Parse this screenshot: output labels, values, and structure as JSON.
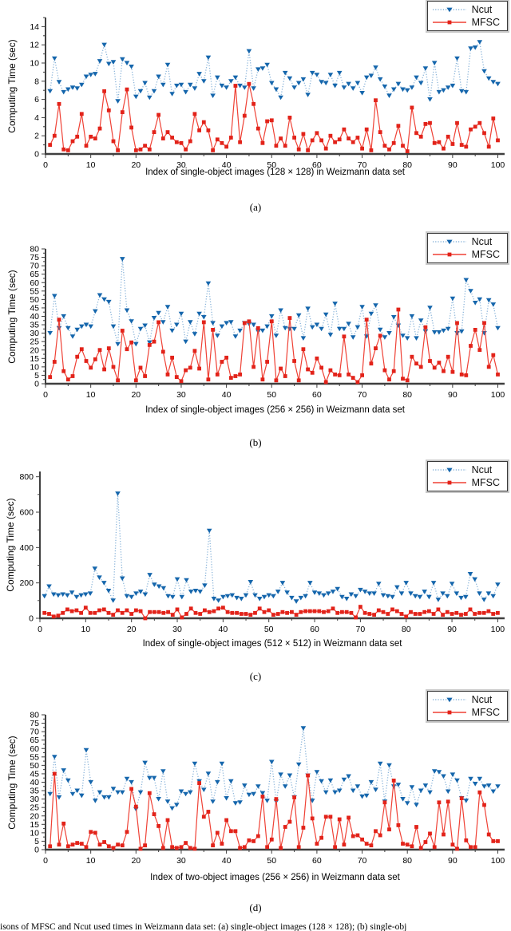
{
  "caption_fragment": "isons of MFSC and Ncut used times in Weizmann data set: (a) single-object images (128 × 128); (b) single-obj",
  "colors": {
    "ncut_marker": "#1566ac",
    "ncut_line": "#88b3d9",
    "mfsc_marker": "#e2231a",
    "mfsc_line": "#ef4135",
    "axis": "#3f3f3f",
    "text": "#000000"
  },
  "chart_data": [
    {
      "type": "line",
      "sub_label": "(a)",
      "ylabel": "Computing  Time (sec)",
      "xlabel": "Index of single-object images (128 × 128) in Weizmann data set",
      "x_start": 1,
      "x_end": 100,
      "xticks": [
        0,
        10,
        20,
        30,
        40,
        50,
        60,
        70,
        80,
        90,
        100
      ],
      "ylim": [
        0,
        15
      ],
      "ytick_step": 2,
      "ytick_max": 14,
      "legend_position": "top-right",
      "grid": false,
      "series": [
        {
          "name": "Ncut",
          "style": "dotted-triangle",
          "values": [
            6.9,
            10.5,
            7.9,
            6.8,
            7.1,
            7.3,
            7.2,
            7.6,
            8.5,
            8.7,
            8.8,
            10.2,
            12.0,
            9.9,
            10.1,
            5.8,
            10.4,
            10.0,
            9.6,
            6.3,
            6.9,
            7.8,
            6.2,
            6.9,
            8.5,
            7.6,
            9.8,
            6.6,
            7.5,
            7.6,
            6.8,
            7.6,
            7.2,
            8.8,
            8.0,
            10.6,
            6.4,
            8.4,
            7.5,
            7.3,
            8.0,
            8.4,
            7.5,
            7.3,
            11.3,
            7.2,
            9.3,
            9.4,
            9.8,
            7.8,
            7.1,
            6.2,
            8.9,
            8.3,
            7.3,
            7.8,
            8.2,
            6.5,
            8.9,
            8.7,
            7.9,
            7.8,
            8.7,
            7.5,
            8.9,
            7.3,
            7.7,
            7.2,
            7.8,
            6.7,
            8.4,
            8.6,
            9.5,
            8.2,
            7.4,
            6.4,
            7.1,
            7.7,
            7.1,
            7.0,
            7.3,
            8.4,
            7.8,
            9.4,
            6.0,
            10.0,
            6.8,
            7.0,
            7.3,
            7.5,
            10.5,
            6.9,
            6.8,
            11.6,
            11.7,
            12.3,
            9.1,
            8.3,
            7.9,
            7.7
          ]
        },
        {
          "name": "MFSC",
          "style": "solid-square",
          "values": [
            1.0,
            2.0,
            5.5,
            0.5,
            0.4,
            1.4,
            1.9,
            4.4,
            0.9,
            1.9,
            1.7,
            2.8,
            6.9,
            4.8,
            1.4,
            0.4,
            4.6,
            7.1,
            2.9,
            0.4,
            0.5,
            0.9,
            0.5,
            2.4,
            4.3,
            1.7,
            2.4,
            1.8,
            1.3,
            1.2,
            0.5,
            1.4,
            4.4,
            2.6,
            3.5,
            2.6,
            0.4,
            1.6,
            1.2,
            0.8,
            1.8,
            7.5,
            1.3,
            4.2,
            7.7,
            5.5,
            2.8,
            1.2,
            3.6,
            3.7,
            0.9,
            1.7,
            0.9,
            4.0,
            1.8,
            0.5,
            2.2,
            0.4,
            1.5,
            2.3,
            1.5,
            0.6,
            2.0,
            1.3,
            1.6,
            2.7,
            1.7,
            1.3,
            1.8,
            0.6,
            2.7,
            0.4,
            5.9,
            2.4,
            0.9,
            0.5,
            1.2,
            3.1,
            0.9,
            0.3,
            5.1,
            2.3,
            1.9,
            3.3,
            3.4,
            1.2,
            1.3,
            0.6,
            1.9,
            1.1,
            3.4,
            1.0,
            0.8,
            2.7,
            3.0,
            3.4,
            2.3,
            0.8,
            3.9,
            1.5
          ]
        }
      ]
    },
    {
      "type": "line",
      "sub_label": "(b)",
      "ylabel": "Computing Time (sec)",
      "xlabel": "Index of single-object images (256 × 256) in Weizmann data set",
      "x_start": 1,
      "x_end": 100,
      "xticks": [
        0,
        10,
        20,
        30,
        40,
        50,
        60,
        70,
        80,
        90,
        100
      ],
      "ylim": [
        0,
        80
      ],
      "ytick_step": 5,
      "ytick_max": 80,
      "legend_position": "top-right",
      "grid": false,
      "series": [
        {
          "name": "Ncut",
          "style": "dotted-triangle",
          "values": [
            30,
            52,
            33,
            40,
            33,
            28,
            32,
            34,
            35,
            34,
            43,
            52.5,
            50,
            48.5,
            34,
            23.5,
            74,
            43.5,
            37,
            23.5,
            32.5,
            34.5,
            24.5,
            39,
            42,
            36.5,
            45.5,
            31.5,
            35,
            41.5,
            25,
            36.5,
            29.5,
            41.5,
            39.5,
            59.5,
            36,
            28.5,
            34,
            36,
            36.5,
            28,
            31.5,
            36,
            35.5,
            35,
            31,
            31.5,
            34,
            40,
            28.5,
            43.5,
            33,
            32.5,
            32.5,
            40.5,
            27,
            44.5,
            33.5,
            35,
            32.5,
            41,
            29,
            47.5,
            32.5,
            32.5,
            35.5,
            27.5,
            33.5,
            45.5,
            28,
            41.5,
            46.5,
            32,
            27.5,
            30,
            39.5,
            34.5,
            28.5,
            27,
            40,
            27,
            37.5,
            31,
            45,
            30.5,
            30.5,
            31.5,
            32.5,
            50.5,
            30,
            31,
            61.5,
            55,
            48,
            50,
            30,
            49.5,
            47,
            33
          ]
        },
        {
          "name": "MFSC",
          "style": "solid-square",
          "values": [
            4,
            13,
            38,
            7.5,
            2.5,
            4.5,
            16,
            20.5,
            13.5,
            9.5,
            14.5,
            20,
            8.5,
            21,
            10,
            2,
            31.5,
            20.5,
            24.5,
            2,
            9.5,
            4.5,
            23,
            25,
            36.5,
            19,
            5.5,
            15.5,
            4,
            1.5,
            8,
            9.5,
            19.5,
            9,
            36.5,
            2.5,
            32,
            5.5,
            13,
            15.5,
            3.5,
            4.5,
            5.5,
            36,
            37,
            10,
            33,
            2.5,
            13,
            37,
            2,
            9,
            4.5,
            39,
            13.5,
            2,
            20.5,
            8.5,
            6.5,
            15,
            9.5,
            1,
            8,
            5.5,
            5,
            28,
            5.5,
            3.5,
            1,
            5,
            38,
            12,
            21,
            28.5,
            8,
            2.5,
            7.5,
            44,
            3,
            2,
            16,
            12,
            10,
            33.5,
            13.5,
            9.5,
            12.5,
            7.5,
            16,
            7,
            36,
            5.5,
            5,
            22.5,
            32,
            20,
            36,
            10,
            17,
            5.5
          ]
        }
      ]
    },
    {
      "type": "line",
      "sub_label": "(c)",
      "ylabel": "Computing Time (sec)",
      "xlabel": "Index of single-object images (512 × 512) in Weizmann data set",
      "x_start": 1,
      "x_end": 100,
      "xticks": [
        0,
        10,
        20,
        30,
        40,
        50,
        60,
        70,
        80,
        90,
        100
      ],
      "ylim": [
        0,
        830
      ],
      "ytick_step": 200,
      "ytick_max": 800,
      "legend_position": "top-right",
      "grid": false,
      "series": [
        {
          "name": "Ncut",
          "style": "dotted-triangle",
          "values": [
            125,
            180,
            135,
            130,
            135,
            130,
            145,
            120,
            130,
            135,
            140,
            280,
            230,
            200,
            155,
            100,
            705,
            225,
            125,
            120,
            140,
            150,
            135,
            245,
            190,
            180,
            170,
            125,
            120,
            220,
            120,
            215,
            150,
            155,
            150,
            185,
            495,
            110,
            100,
            120,
            125,
            130,
            115,
            110,
            130,
            205,
            130,
            110,
            120,
            130,
            125,
            150,
            200,
            145,
            115,
            95,
            115,
            125,
            200,
            145,
            140,
            130,
            140,
            150,
            165,
            120,
            110,
            135,
            125,
            160,
            150,
            140,
            140,
            195,
            130,
            125,
            120,
            175,
            140,
            200,
            140,
            125,
            120,
            150,
            120,
            200,
            105,
            140,
            125,
            195,
            140,
            115,
            120,
            250,
            220,
            140,
            105,
            140,
            125,
            190
          ]
        },
        {
          "name": "MFSC",
          "style": "solid-square",
          "values": [
            30,
            25,
            10,
            15,
            30,
            50,
            40,
            45,
            30,
            60,
            30,
            30,
            45,
            50,
            30,
            20,
            45,
            30,
            45,
            25,
            45,
            40,
            0,
            35,
            35,
            35,
            30,
            35,
            20,
            50,
            5,
            25,
            55,
            30,
            25,
            45,
            35,
            40,
            55,
            60,
            35,
            30,
            30,
            25,
            25,
            20,
            30,
            55,
            35,
            45,
            20,
            25,
            35,
            30,
            35,
            20,
            35,
            40,
            40,
            40,
            40,
            35,
            40,
            55,
            30,
            35,
            35,
            30,
            5,
            65,
            30,
            25,
            20,
            45,
            35,
            25,
            50,
            40,
            25,
            10,
            35,
            25,
            25,
            35,
            40,
            25,
            50,
            20,
            35,
            25,
            30,
            20,
            25,
            50,
            25,
            30,
            30,
            40,
            25,
            30
          ]
        }
      ]
    },
    {
      "type": "line",
      "sub_label": "(d)",
      "ylabel": "Computing Time (sec)",
      "xlabel": "Index of two-object images (256 × 256) in Weizmann data set",
      "x_start": 1,
      "x_end": 100,
      "xticks": [
        0,
        10,
        20,
        30,
        40,
        50,
        60,
        70,
        80,
        90,
        100
      ],
      "ylim": [
        0,
        80
      ],
      "ytick_step": 5,
      "ytick_max": 80,
      "legend_position": "top-right",
      "grid": false,
      "series": [
        {
          "name": "Ncut",
          "style": "dotted-triangle",
          "values": [
            33,
            55,
            31,
            47,
            41,
            33,
            35,
            32,
            59,
            40,
            29,
            34,
            31,
            31,
            36,
            34,
            34,
            42,
            40,
            24,
            34,
            51.5,
            42.5,
            42.5,
            30,
            46.5,
            28.5,
            24.5,
            26.5,
            34.5,
            33,
            34,
            51,
            40.5,
            35.5,
            45,
            28.5,
            40,
            51,
            30.5,
            40.5,
            27.5,
            28,
            38,
            32.5,
            33,
            37.5,
            33.5,
            29,
            52,
            28.5,
            44.5,
            37.5,
            44,
            31,
            50.5,
            72,
            44,
            29,
            46,
            40.5,
            34,
            41,
            34,
            35,
            41.5,
            43.5,
            35,
            37.5,
            31.5,
            32,
            40,
            35.5,
            51,
            28.5,
            50,
            37.5,
            38.5,
            30,
            27.5,
            37,
            26.5,
            35,
            38,
            34,
            46.5,
            46,
            43.5,
            34.5,
            44.5,
            41,
            30.5,
            29,
            42,
            39,
            42,
            37.5,
            38,
            34.5,
            37.5
          ]
        },
        {
          "name": "MFSC",
          "style": "solid-square",
          "values": [
            2,
            45,
            3,
            15.5,
            2,
            3,
            4,
            3.5,
            1.5,
            10.5,
            10,
            3,
            4.5,
            2,
            1,
            3,
            2.5,
            10.5,
            36,
            25.5,
            0.5,
            2.5,
            33.5,
            21,
            14,
            1,
            17.5,
            1.5,
            1,
            1.5,
            4,
            1,
            0.5,
            39.5,
            19.5,
            22.5,
            2.5,
            10,
            3.5,
            17.5,
            11,
            11,
            1,
            1.5,
            5.5,
            5,
            8,
            31.5,
            1.5,
            6,
            30,
            1,
            13.5,
            16.5,
            31,
            1.5,
            13,
            44,
            18.5,
            3.5,
            7,
            19.5,
            19.5,
            1.5,
            18,
            3,
            19,
            8,
            8.5,
            6,
            3.5,
            2.5,
            11,
            8.5,
            28,
            12,
            41,
            14.5,
            3.5,
            3,
            2,
            13.5,
            1,
            4.5,
            9.5,
            1.5,
            28,
            9,
            28.5,
            3,
            0.5,
            30.5,
            5.5,
            1.5,
            1.5,
            34,
            26.5,
            9,
            5,
            5
          ]
        }
      ]
    }
  ]
}
